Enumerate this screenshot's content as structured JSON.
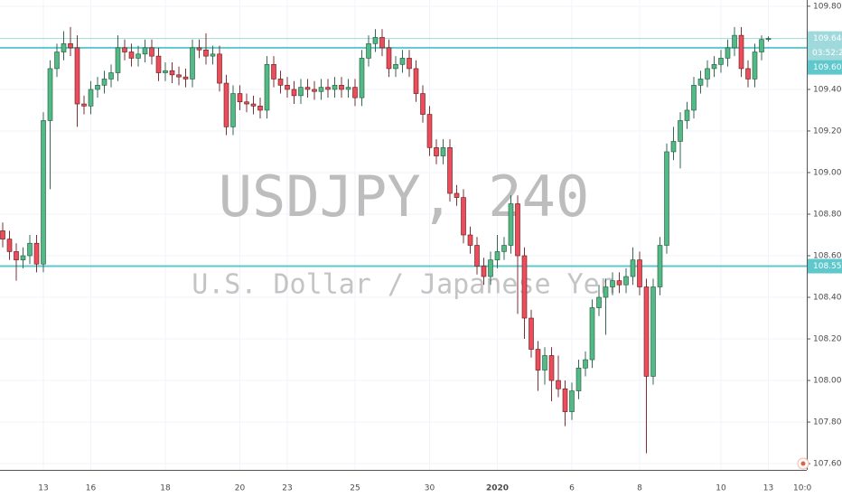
{
  "chart_data": {
    "type": "candlestick",
    "title": "USDJPY, 240",
    "subtitle": "U.S. Dollar / Japanese Yen",
    "categories": [
      null,
      null,
      null,
      null,
      null,
      null,
      "13",
      null,
      null,
      null,
      null,
      null,
      null,
      "16",
      null,
      null,
      null,
      null,
      null,
      null,
      null,
      null,
      null,
      null,
      "18",
      null,
      null,
      null,
      null,
      null,
      null,
      null,
      null,
      null,
      null,
      "20",
      null,
      null,
      null,
      null,
      null,
      null,
      "23",
      null,
      null,
      null,
      null,
      null,
      null,
      null,
      null,
      null,
      "25",
      null,
      null,
      null,
      null,
      null,
      null,
      null,
      null,
      null,
      null,
      "30",
      null,
      null,
      null,
      null,
      null,
      null,
      null,
      null,
      null,
      "2020",
      null,
      null,
      null,
      null,
      null,
      null,
      null,
      null,
      null,
      null,
      "6",
      null,
      null,
      null,
      null,
      null,
      null,
      null,
      null,
      null,
      "8",
      null,
      null,
      null,
      null,
      null,
      null,
      null,
      null,
      null,
      null,
      null,
      "10",
      null,
      null,
      null,
      null,
      null,
      null,
      "13"
    ],
    "x_axis_cut_label": "10:0",
    "open": [
      108.72,
      108.68,
      108.62,
      108.58,
      108.6,
      108.66,
      108.56,
      109.25,
      109.5,
      109.58,
      109.62,
      109.6,
      109.33,
      109.32,
      109.4,
      109.42,
      109.45,
      109.48,
      109.6,
      109.58,
      109.55,
      109.57,
      109.6,
      109.56,
      109.48,
      109.49,
      109.47,
      109.46,
      109.45,
      109.6,
      109.59,
      109.56,
      109.57,
      109.43,
      109.22,
      109.38,
      109.34,
      109.33,
      109.32,
      109.3,
      109.52,
      109.45,
      109.42,
      109.4,
      109.37,
      109.41,
      109.4,
      109.39,
      109.41,
      109.4,
      109.42,
      109.4,
      109.41,
      109.36,
      109.55,
      109.62,
      109.65,
      109.6,
      109.5,
      109.52,
      109.55,
      109.5,
      109.38,
      109.28,
      109.12,
      109.08,
      109.12,
      108.9,
      108.88,
      108.7,
      108.65,
      108.55,
      108.5,
      108.58,
      108.62,
      108.65,
      108.85,
      108.6,
      108.3,
      108.15,
      108.05,
      108.12,
      108.0,
      107.96,
      107.85,
      107.95,
      108.06,
      108.1,
      108.35,
      108.4,
      108.45,
      108.48,
      108.46,
      108.5,
      108.58,
      108.45,
      108.02,
      108.45,
      108.65,
      109.1,
      109.15,
      109.25,
      109.3,
      109.42,
      109.45,
      109.5,
      109.52,
      109.55,
      109.6,
      109.66,
      109.5,
      109.45,
      109.58,
      109.64
    ],
    "high": [
      108.76,
      108.72,
      108.66,
      108.64,
      108.7,
      108.7,
      109.29,
      109.54,
      109.62,
      109.68,
      109.7,
      109.66,
      109.37,
      109.44,
      109.46,
      109.49,
      109.52,
      109.66,
      109.64,
      109.62,
      109.61,
      109.64,
      109.64,
      109.6,
      109.53,
      109.53,
      109.51,
      109.5,
      109.64,
      109.64,
      109.67,
      109.61,
      109.61,
      109.47,
      109.42,
      109.42,
      109.38,
      109.37,
      109.36,
      109.56,
      109.56,
      109.49,
      109.46,
      109.44,
      109.45,
      109.45,
      109.44,
      109.45,
      109.45,
      109.46,
      109.46,
      109.45,
      109.45,
      109.59,
      109.66,
      109.69,
      109.69,
      109.64,
      109.56,
      109.59,
      109.59,
      109.54,
      109.42,
      109.32,
      109.16,
      109.16,
      109.16,
      108.94,
      108.92,
      108.74,
      108.69,
      108.59,
      108.62,
      108.7,
      108.69,
      108.89,
      108.89,
      108.64,
      108.34,
      108.19,
      108.16,
      108.16,
      108.12,
      108.0,
      107.99,
      108.1,
      108.14,
      108.39,
      108.46,
      108.49,
      108.52,
      108.52,
      108.54,
      108.64,
      108.62,
      108.49,
      108.49,
      108.69,
      109.14,
      109.22,
      109.29,
      109.34,
      109.46,
      109.49,
      109.54,
      109.56,
      109.59,
      109.64,
      109.7,
      109.7,
      109.54,
      109.62,
      109.66,
      109.655
    ],
    "low": [
      108.64,
      108.58,
      108.48,
      108.54,
      108.56,
      108.52,
      108.52,
      108.92,
      109.46,
      109.54,
      109.56,
      109.22,
      109.28,
      109.28,
      109.36,
      109.38,
      109.41,
      109.44,
      109.54,
      109.51,
      109.51,
      109.53,
      109.52,
      109.44,
      109.44,
      109.43,
      109.42,
      109.41,
      109.41,
      109.55,
      109.52,
      109.52,
      109.39,
      109.18,
      109.18,
      109.3,
      109.29,
      109.28,
      109.26,
      109.26,
      109.41,
      109.38,
      109.36,
      109.33,
      109.33,
      109.36,
      109.35,
      109.35,
      109.36,
      109.36,
      109.36,
      109.36,
      109.32,
      109.32,
      109.51,
      109.58,
      109.56,
      109.46,
      109.46,
      109.48,
      109.46,
      109.34,
      109.24,
      109.08,
      109.04,
      109.04,
      108.86,
      108.84,
      108.66,
      108.61,
      108.51,
      108.46,
      108.46,
      108.54,
      108.58,
      108.61,
      108.32,
      108.2,
      108.11,
      107.95,
      107.98,
      107.9,
      107.92,
      107.78,
      107.81,
      107.91,
      108.02,
      108.06,
      108.31,
      108.22,
      108.41,
      108.42,
      108.42,
      108.46,
      108.41,
      107.65,
      107.98,
      108.41,
      108.61,
      109.06,
      109.02,
      109.21,
      109.26,
      109.38,
      109.41,
      109.46,
      109.48,
      109.51,
      109.56,
      109.46,
      109.41,
      109.41,
      109.54,
      109.63
    ],
    "close": [
      108.68,
      108.62,
      108.58,
      108.6,
      108.66,
      108.56,
      109.25,
      109.5,
      109.58,
      109.62,
      109.6,
      109.33,
      109.32,
      109.4,
      109.42,
      109.45,
      109.48,
      109.6,
      109.58,
      109.55,
      109.57,
      109.6,
      109.56,
      109.48,
      109.49,
      109.47,
      109.46,
      109.45,
      109.6,
      109.59,
      109.56,
      109.57,
      109.43,
      109.22,
      109.38,
      109.34,
      109.33,
      109.32,
      109.3,
      109.52,
      109.45,
      109.42,
      109.4,
      109.37,
      109.41,
      109.4,
      109.39,
      109.41,
      109.4,
      109.42,
      109.4,
      109.41,
      109.36,
      109.55,
      109.62,
      109.65,
      109.6,
      109.5,
      109.52,
      109.55,
      109.5,
      109.38,
      109.28,
      109.12,
      109.08,
      109.12,
      108.9,
      108.88,
      108.7,
      108.65,
      108.55,
      108.5,
      108.58,
      108.62,
      108.65,
      108.85,
      108.6,
      108.3,
      108.15,
      108.05,
      108.12,
      108.0,
      107.96,
      107.85,
      107.95,
      108.06,
      108.1,
      108.35,
      108.4,
      108.45,
      108.48,
      108.46,
      108.5,
      108.58,
      108.45,
      108.02,
      108.45,
      108.65,
      109.1,
      109.15,
      109.25,
      109.3,
      109.42,
      109.45,
      109.5,
      109.52,
      109.55,
      109.6,
      109.66,
      109.5,
      109.45,
      109.58,
      109.64,
      109.645
    ],
    "up_color": "#53b987",
    "down_color": "#eb4d5c",
    "ylim": [
      107.57,
      109.83
    ],
    "yticks": [
      {
        "value": 107.6,
        "label": "107.600"
      },
      {
        "value": 107.8,
        "label": "107.800"
      },
      {
        "value": 108.0,
        "label": "108.000"
      },
      {
        "value": 108.2,
        "label": "108.200"
      },
      {
        "value": 108.4,
        "label": "108.400"
      },
      {
        "value": 108.6,
        "label": "108.600"
      },
      {
        "value": 108.8,
        "label": "108.800"
      },
      {
        "value": 109.0,
        "label": "109.000"
      },
      {
        "value": 109.2,
        "label": "109.200"
      },
      {
        "value": 109.4,
        "label": "109.400"
      },
      {
        "value": 109.6,
        "label": "109.600"
      },
      {
        "value": 109.8,
        "label": "109.800"
      }
    ],
    "grid": true,
    "price_lines": [
      {
        "value": 109.645,
        "color": "#9fd9dc",
        "countdown": "03:52:27"
      },
      {
        "value": 109.6,
        "label": "109.600",
        "color": "#5fc8cc"
      },
      {
        "value": 108.55,
        "label": "108.550",
        "color": "#5fc8cc"
      }
    ]
  }
}
